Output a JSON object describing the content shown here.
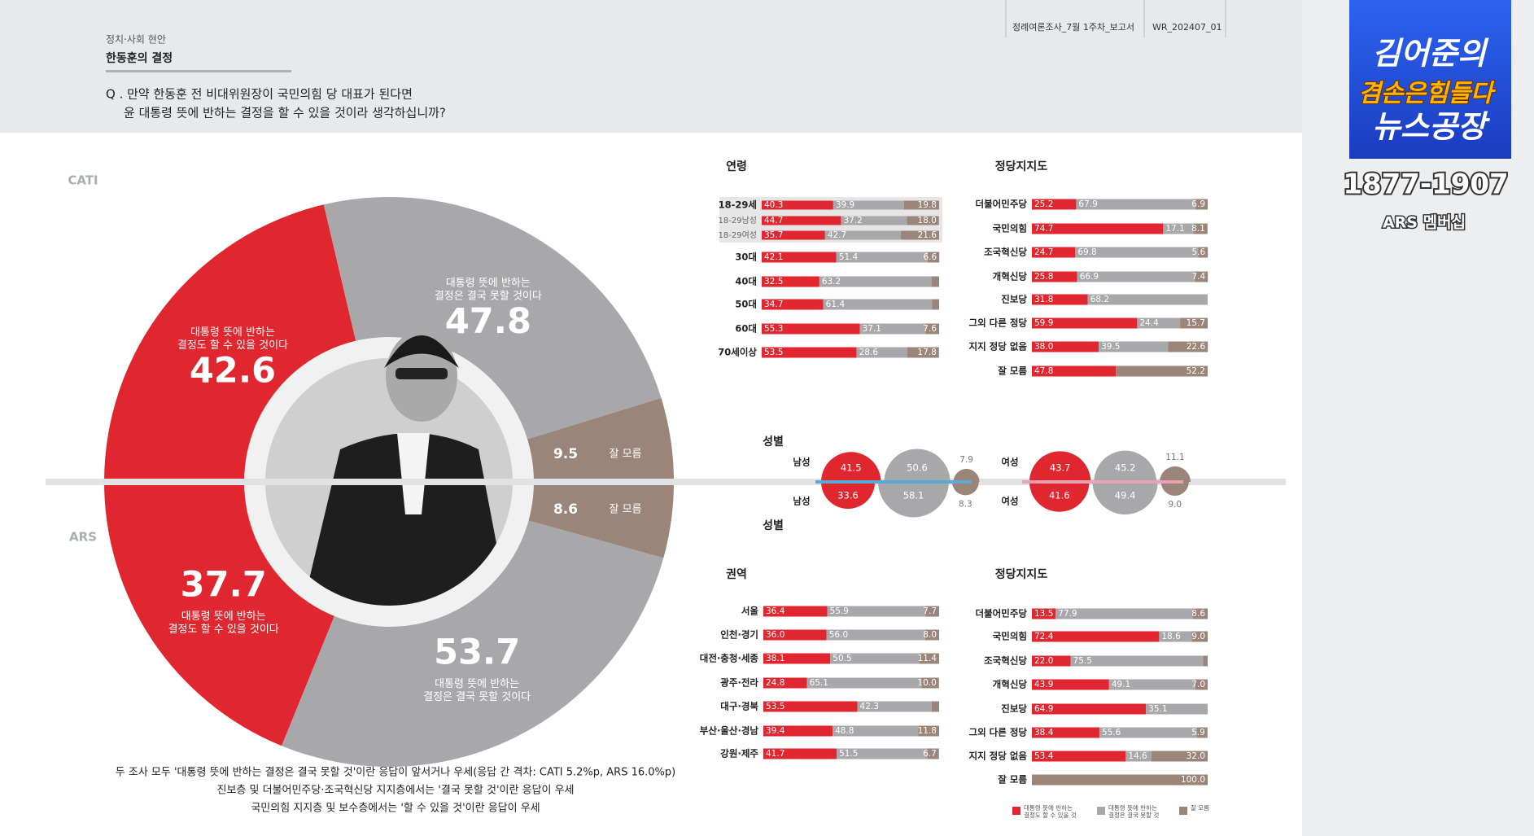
{
  "header": {
    "section": "정치·사회 현안",
    "title": "한동훈의 결정",
    "question": [
      "Q . 만약 한동훈 전 비대위원장이 국민의힘 당 대표가 된다면",
      "윤 대통령 뜻에 반하는 결정을 할 수 있을 것이라 생각하십니까?"
    ],
    "report": "정례여론조사_7월 1주차_보고서",
    "code": "WR_202407_01"
  },
  "logo": {
    "name": "김어준의",
    "slogan": "겸손은힘들다",
    "show": "뉴스공장",
    "phone": "1877-1907",
    "membership": "ARS 멤버십"
  },
  "chart_data": [
    {
      "type": "pie",
      "categories": [
        "대통령 뜻에 반하는 결정도 할 수 있을 것이다",
        "대통령 뜻에 반하는 결정은 결국 못할 것이다",
        "잘 모름"
      ],
      "colors": [
        "#e0262f",
        "#a8a8aa",
        "#9b8478"
      ],
      "series": [
        {
          "name": "CATI",
          "values": [
            42.6,
            47.8,
            9.5
          ]
        },
        {
          "name": "ARS",
          "values": [
            37.7,
            53.7,
            8.6
          ]
        }
      ]
    },
    {
      "type": "bar",
      "orientation": "horizontal",
      "stacked": true,
      "title": "연령",
      "xlim": [
        0,
        100
      ],
      "categories": [
        "18-29세",
        "18-29남성",
        "18-29여성",
        "30대",
        "40대",
        "50대",
        "60대",
        "70세이상"
      ],
      "series": [
        {
          "color": "#e0262f",
          "values": [
            40.3,
            44.7,
            35.7,
            42.1,
            32.5,
            34.7,
            55.3,
            53.5
          ]
        },
        {
          "color": "#a8a8aa",
          "values": [
            39.9,
            37.2,
            42.7,
            51.4,
            63.2,
            61.4,
            37.1,
            28.6
          ]
        },
        {
          "color": "#9b8478",
          "values": [
            19.8,
            18.0,
            21.6,
            6.6,
            4.3,
            3.9,
            7.6,
            17.8
          ],
          "value_labels": [
            "19.8",
            "18.0",
            "21.6",
            "6.6",
            null,
            null,
            "7.6",
            "17.8"
          ]
        }
      ]
    },
    {
      "type": "bar",
      "orientation": "horizontal",
      "stacked": true,
      "title": "정당지지도",
      "xlim": [
        0,
        100
      ],
      "categories": [
        "더불어민주당",
        "국민의힘",
        "조국혁신당",
        "개혁신당",
        "진보당",
        "그외 다른 정당",
        "지지 정당 없음",
        "잘 모름"
      ],
      "series": [
        {
          "color": "#e0262f",
          "values": [
            25.2,
            74.7,
            24.7,
            25.8,
            31.8,
            59.9,
            38.0,
            47.8
          ],
          "value_labels": [
            "25.2",
            "74.7",
            "24.7",
            "25.8",
            "31.8",
            "59.9",
            "38.0",
            "47.8"
          ]
        },
        {
          "color": "#a8a8aa",
          "values": [
            67.9,
            17.1,
            69.8,
            66.9,
            68.2,
            24.4,
            39.5,
            null
          ]
        },
        {
          "color": "#9b8478",
          "values": [
            6.9,
            8.1,
            5.6,
            7.4,
            null,
            15.7,
            22.6,
            52.2
          ]
        }
      ]
    },
    {
      "type": "bubble",
      "title": "성별",
      "categories": [
        "남성",
        "여성"
      ],
      "series": [
        {
          "color": "#e0262f",
          "values": [
            41.5,
            43.7
          ]
        },
        {
          "color": "#a8a8aa",
          "values": [
            50.6,
            45.2
          ]
        },
        {
          "color": "#9b8478",
          "values": [
            7.9,
            11.1
          ]
        }
      ]
    },
    {
      "type": "bubble",
      "title": "성별",
      "categories": [
        "남성",
        "여성"
      ],
      "series": [
        {
          "color": "#e0262f",
          "values": [
            33.6,
            41.6
          ]
        },
        {
          "color": "#a8a8aa",
          "values": [
            58.1,
            49.4
          ]
        },
        {
          "color": "#9b8478",
          "values": [
            8.3,
            9.0
          ],
          "value_labels": [
            "8.3",
            "9.0"
          ]
        }
      ]
    },
    {
      "type": "bar",
      "orientation": "horizontal",
      "stacked": true,
      "title": "권역",
      "xlim": [
        0,
        100
      ],
      "categories": [
        "서울",
        "인천·경기",
        "대전·충청·세종",
        "광주·전라",
        "대구·경북",
        "부산·울산·경남",
        "강원·제주"
      ],
      "series": [
        {
          "color": "#e0262f",
          "values": [
            36.4,
            36.0,
            38.1,
            24.8,
            53.5,
            39.4,
            41.7
          ],
          "value_labels": [
            "36.4",
            "36.0",
            "38.1",
            "24.8",
            "53.5",
            "39.4",
            "41.7"
          ]
        },
        {
          "color": "#a8a8aa",
          "values": [
            55.9,
            56.0,
            50.5,
            65.1,
            42.3,
            48.8,
            51.5
          ],
          "value_labels": [
            "55.9",
            "56.0",
            "50.5",
            "65.1",
            "42.3",
            "48.8",
            "51.5"
          ]
        },
        {
          "color": "#9b8478",
          "values": [
            7.7,
            8.0,
            11.4,
            10.0,
            4.2,
            11.8,
            6.7
          ],
          "value_labels": [
            "7.7",
            "8.0",
            "11.4",
            "10.0",
            null,
            "11.8",
            "6.7"
          ]
        }
      ]
    },
    {
      "type": "bar",
      "orientation": "horizontal",
      "stacked": true,
      "title": "정당지지도",
      "xlim": [
        0,
        100
      ],
      "categories": [
        "더불어민주당",
        "국민의힘",
        "조국혁신당",
        "개혁신당",
        "진보당",
        "그외 다른 정당",
        "지지 정당 없음",
        "잘 모름"
      ],
      "series": [
        {
          "name": "대통령 뜻에 반하는 결정도 할 수 있을 것",
          "color": "#e0262f",
          "values": [
            13.5,
            72.4,
            22.0,
            43.9,
            64.9,
            38.4,
            53.4,
            null
          ],
          "value_labels": [
            "13.5",
            "72.4",
            "22.0",
            "43.9",
            "64.9",
            "38.4",
            "53.4",
            null
          ]
        },
        {
          "name": "대통령 뜻에 반하는 결정은 결국 못할 것",
          "color": "#a8a8aa",
          "values": [
            77.9,
            18.6,
            75.5,
            49.1,
            35.1,
            55.6,
            14.6,
            null
          ]
        },
        {
          "name": "잘 모름",
          "color": "#9b8478",
          "values": [
            8.6,
            9.0,
            2.5,
            7.0,
            null,
            5.9,
            32.0,
            100.0
          ],
          "value_labels": [
            "8.6",
            "9.0",
            null,
            "7.0",
            null,
            "5.9",
            "32.0",
            "100.0"
          ]
        }
      ]
    }
  ],
  "notes": [
    "두 조사 모두 '대통령 뜻에 반하는 결정은 결국 못할 것'이란 응답이 앞서거나 우세(응답 간 격차: CATI 5.2%p, ARS 16.0%p)",
    "진보층 및 더불어민주당·조국혁신당 지지층에서는 '결국 못할 것'이란 응답이 우세",
    "국민의힘 지지층 및 보수층에서는 '할 수 있을 것'이란 응답이 우세"
  ]
}
